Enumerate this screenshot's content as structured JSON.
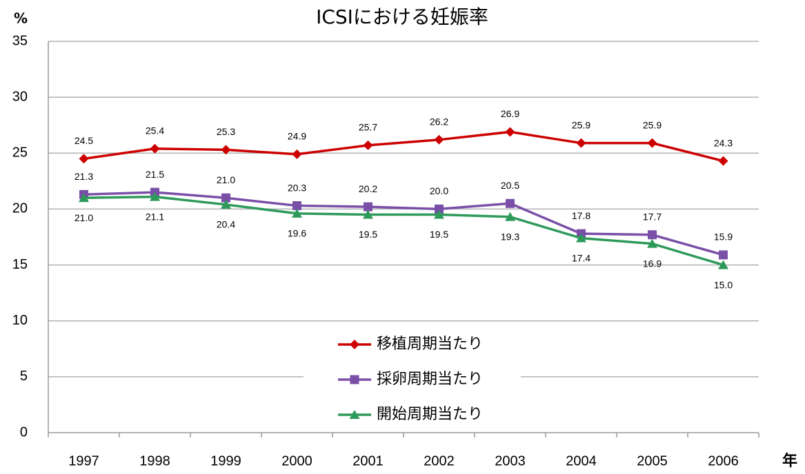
{
  "chart_data": {
    "type": "line",
    "title": "ICSIにおける妊娠率",
    "y_label": "%",
    "x_label": "年",
    "categories": [
      "1997",
      "1998",
      "1999",
      "2000",
      "2001",
      "2002",
      "2003",
      "2004",
      "2005",
      "2006"
    ],
    "series": [
      {
        "name": "移植周期当たり",
        "color": "#cc0000",
        "marker": "diamond",
        "label_position": "above",
        "values": [
          24.5,
          25.4,
          25.3,
          24.9,
          25.7,
          26.2,
          26.9,
          25.9,
          25.9,
          24.3
        ],
        "value_labels": [
          "24.5",
          "25.4",
          "25.3",
          "24.9",
          "25.7",
          "26.2",
          "26.9",
          "25.9",
          "25.9",
          "24.3"
        ]
      },
      {
        "name": "採卵周期当たり",
        "color": "#7a4fa8",
        "marker": "square",
        "label_position": "above",
        "values": [
          21.3,
          21.5,
          21,
          20.3,
          20.2,
          20,
          20.5,
          17.8,
          17.7,
          15.9
        ],
        "value_labels": [
          "21.3",
          "21.5",
          "21.0",
          "20.3",
          "20.2",
          "20.0",
          "20.5",
          "17.8",
          "17.7",
          "15.9"
        ]
      },
      {
        "name": "開始周期当たり",
        "color": "#2e9a5a",
        "marker": "triangle",
        "label_position": "below",
        "values": [
          21,
          21.1,
          20.4,
          19.6,
          19.5,
          19.5,
          19.3,
          17.4,
          16.9,
          15
        ],
        "value_labels": [
          "21.0",
          "21.1",
          "20.4",
          "19.6",
          "19.5",
          "19.5",
          "19.3",
          "17.4",
          "16.9",
          "15.0"
        ]
      }
    ],
    "ylim": [
      0,
      35
    ],
    "yticks": [
      0,
      5,
      10,
      15,
      20,
      25,
      30,
      35
    ],
    "grid": true
  }
}
